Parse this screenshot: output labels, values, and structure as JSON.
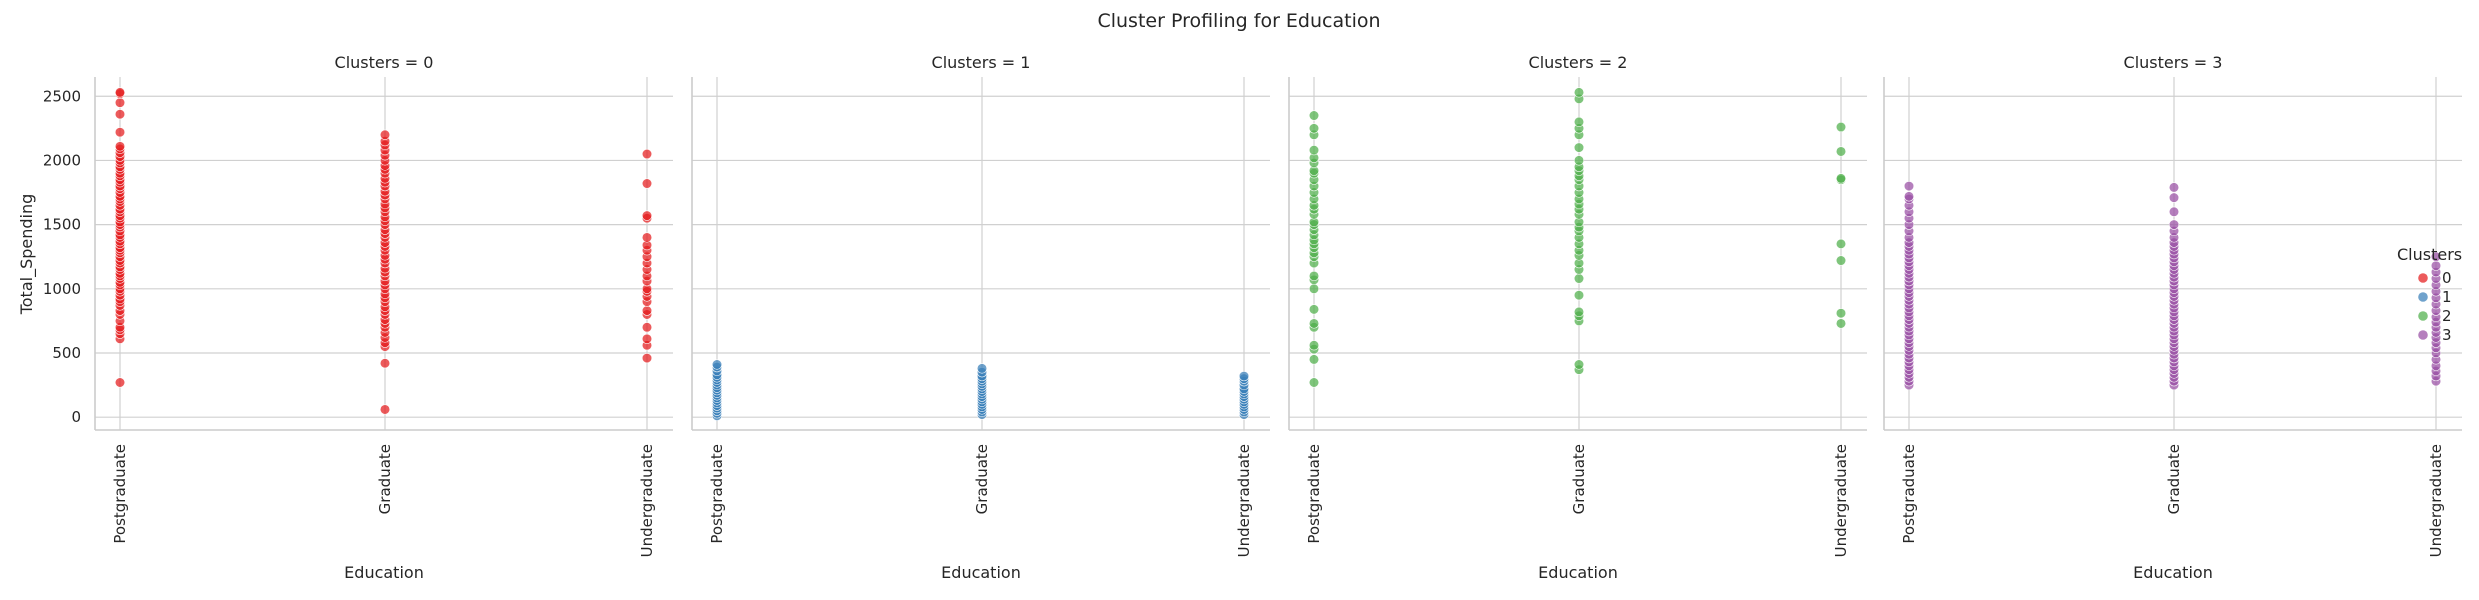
{
  "chart_data": {
    "type": "scatter",
    "title": "Cluster Profiling for Education",
    "ylabel": "Total_Spending",
    "xlabel": "Education",
    "categories": [
      "Postgraduate",
      "Graduate",
      "Undergraduate"
    ],
    "ylim": [
      -100,
      2650
    ],
    "yticks": [
      0,
      500,
      1000,
      1500,
      2000,
      2500
    ],
    "grid": true,
    "legend": {
      "title": "Clusters",
      "position": "right",
      "labels": [
        "0",
        "1",
        "2",
        "3"
      ]
    },
    "panels": [
      {
        "title": "Clusters = 0",
        "cluster": "0",
        "color": "#e41a1c",
        "points": {
          "Postgraduate": [
            270,
            610,
            650,
            680,
            700,
            750,
            800,
            830,
            870,
            900,
            920,
            950,
            980,
            1000,
            1030,
            1050,
            1080,
            1100,
            1120,
            1150,
            1170,
            1200,
            1220,
            1250,
            1280,
            1300,
            1320,
            1350,
            1370,
            1400,
            1420,
            1450,
            1480,
            1500,
            1520,
            1550,
            1570,
            1600,
            1620,
            1650,
            1680,
            1700,
            1720,
            1750,
            1780,
            1800,
            1830,
            1850,
            1880,
            1900,
            1930,
            1950,
            1980,
            2000,
            2030,
            2060,
            2090,
            2110,
            2220,
            2360,
            2450,
            2520,
            2530
          ],
          "Graduate": [
            60,
            420,
            550,
            580,
            620,
            660,
            700,
            730,
            760,
            800,
            830,
            860,
            900,
            930,
            960,
            1000,
            1030,
            1060,
            1100,
            1130,
            1160,
            1200,
            1230,
            1260,
            1300,
            1330,
            1360,
            1400,
            1430,
            1460,
            1500,
            1530,
            1560,
            1600,
            1630,
            1660,
            1700,
            1730,
            1760,
            1800,
            1830,
            1860,
            1900,
            1930,
            1960,
            2000,
            2040,
            2080,
            2120,
            2150,
            2200
          ],
          "Undergraduate": [
            460,
            560,
            610,
            700,
            800,
            830,
            900,
            940,
            980,
            1000,
            1060,
            1100,
            1150,
            1200,
            1250,
            1300,
            1340,
            1400,
            1550,
            1570,
            1820,
            2050
          ]
        }
      },
      {
        "title": "Clusters = 1",
        "cluster": "1",
        "color": "#377eb8",
        "points": {
          "Postgraduate": [
            10,
            30,
            50,
            70,
            90,
            110,
            130,
            150,
            170,
            190,
            210,
            230,
            250,
            270,
            290,
            310,
            330,
            360,
            390,
            410
          ],
          "Graduate": [
            20,
            40,
            60,
            80,
            100,
            120,
            140,
            160,
            180,
            200,
            220,
            240,
            260,
            280,
            300,
            320,
            350,
            380
          ],
          "Undergraduate": [
            20,
            40,
            60,
            80,
            100,
            120,
            140,
            160,
            180,
            200,
            220,
            250,
            280,
            300,
            320
          ]
        }
      },
      {
        "title": "Clusters = 2",
        "cluster": "2",
        "color": "#4daf4a",
        "points": {
          "Postgraduate": [
            270,
            450,
            530,
            560,
            700,
            730,
            840,
            1000,
            1070,
            1100,
            1200,
            1250,
            1280,
            1320,
            1350,
            1380,
            1420,
            1460,
            1500,
            1520,
            1580,
            1620,
            1650,
            1700,
            1750,
            1800,
            1850,
            1900,
            1920,
            1980,
            2020,
            2080,
            2200,
            2250,
            2350
          ],
          "Graduate": [
            370,
            410,
            750,
            790,
            820,
            950,
            1080,
            1150,
            1200,
            1260,
            1300,
            1350,
            1400,
            1450,
            1480,
            1520,
            1580,
            1620,
            1660,
            1700,
            1750,
            1800,
            1850,
            1880,
            1920,
            1950,
            2000,
            2100,
            2200,
            2250,
            2300,
            2480,
            2530
          ],
          "Undergraduate": [
            730,
            810,
            1220,
            1350,
            1850,
            1860,
            2070,
            2260
          ]
        }
      },
      {
        "title": "Clusters = 3",
        "cluster": "3",
        "color": "#984ea3",
        "points": {
          "Postgraduate": [
            250,
            280,
            310,
            340,
            370,
            400,
            430,
            460,
            490,
            520,
            550,
            580,
            610,
            640,
            670,
            700,
            730,
            760,
            790,
            820,
            850,
            880,
            910,
            940,
            970,
            1000,
            1030,
            1060,
            1090,
            1120,
            1150,
            1180,
            1210,
            1240,
            1270,
            1300,
            1330,
            1360,
            1400,
            1450,
            1500,
            1550,
            1600,
            1650,
            1700,
            1720,
            1800
          ],
          "Graduate": [
            250,
            280,
            310,
            340,
            370,
            400,
            430,
            460,
            490,
            520,
            550,
            580,
            610,
            640,
            670,
            700,
            730,
            760,
            790,
            820,
            850,
            880,
            910,
            940,
            970,
            1000,
            1030,
            1060,
            1090,
            1120,
            1150,
            1180,
            1210,
            1240,
            1270,
            1300,
            1330,
            1360,
            1400,
            1450,
            1500,
            1600,
            1710,
            1790
          ],
          "Undergraduate": [
            280,
            320,
            360,
            400,
            450,
            500,
            540,
            580,
            620,
            660,
            700,
            740,
            780,
            830,
            880,
            930,
            980,
            1030,
            1080,
            1130,
            1180,
            1250
          ]
        }
      }
    ]
  }
}
